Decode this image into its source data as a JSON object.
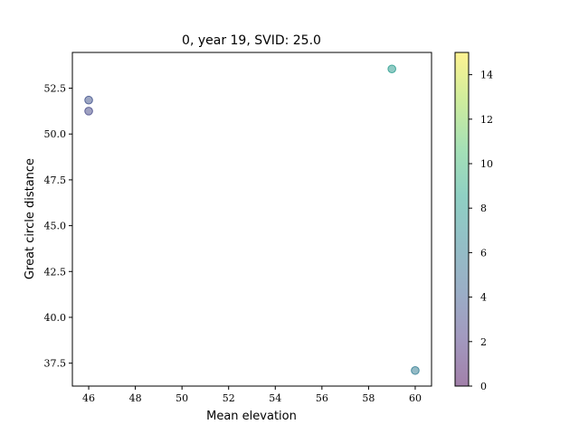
{
  "chart_data": {
    "type": "scatter",
    "title": "0, year 19, SVID: 25.0",
    "xlabel": "Mean elevation",
    "ylabel": "Great circle distance",
    "xlim": [
      45.3,
      60.7
    ],
    "ylim": [
      36.25,
      54.45
    ],
    "xticks": [
      46,
      48,
      50,
      52,
      54,
      56,
      58,
      60
    ],
    "yticks": [
      37.5,
      40.0,
      42.5,
      45.0,
      47.5,
      50.0,
      52.5
    ],
    "xtick_labels": [
      "46",
      "48",
      "50",
      "52",
      "54",
      "56",
      "58",
      "60"
    ],
    "ytick_labels": [
      "37.5",
      "40.0",
      "42.5",
      "45.0",
      "47.5",
      "50.0",
      "52.5"
    ],
    "points": [
      {
        "x": 46,
        "y": 51.85,
        "c": 3.5
      },
      {
        "x": 46,
        "y": 51.25,
        "c": 3.0
      },
      {
        "x": 59,
        "y": 53.55,
        "c": 8.0
      },
      {
        "x": 60,
        "y": 37.1,
        "c": 6.0
      }
    ],
    "colorbar": {
      "colormap": "viridis",
      "range": [
        0,
        15
      ],
      "ticks": [
        0,
        2,
        4,
        6,
        8,
        10,
        12,
        14
      ],
      "tick_labels": [
        "0",
        "2",
        "4",
        "6",
        "8",
        "10",
        "12",
        "14"
      ]
    },
    "marker_alpha": 0.5,
    "grid": false,
    "legend": "none"
  }
}
